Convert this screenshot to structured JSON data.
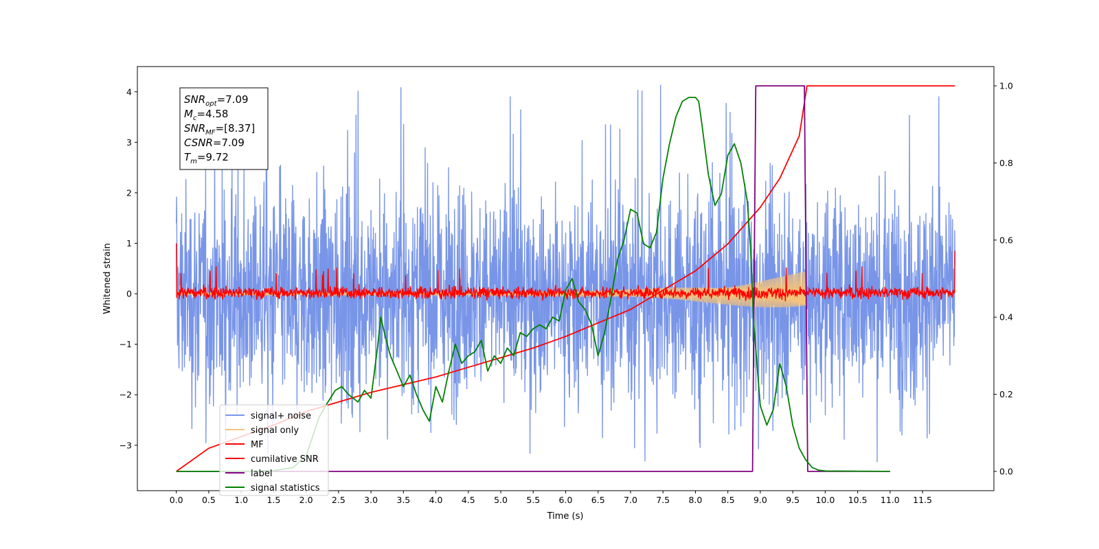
{
  "chart_data": {
    "type": "line",
    "title": "",
    "xlabel": "Time (s)",
    "ylabel": "Whitened strain",
    "y2label": "",
    "xlim": [
      -0.6,
      12.6
    ],
    "ylim": [
      -3.9,
      4.5
    ],
    "y2lim": [
      -0.05,
      1.05
    ],
    "x_ticks": [
      "0.0",
      "0.5",
      "1.0",
      "1.5",
      "2.0",
      "2.5",
      "3.0",
      "3.5",
      "4.0",
      "4.5",
      "5.0",
      "5.5",
      "6.0",
      "6.5",
      "7.0",
      "7.5",
      "8.0",
      "8.5",
      "9.0",
      "9.5",
      "10.0",
      "10.5",
      "11.0",
      "11.5"
    ],
    "y_ticks": [
      "−3",
      "−2",
      "−1",
      "0",
      "1",
      "2",
      "3",
      "4"
    ],
    "y2_ticks": [
      "0.0",
      "0.2",
      "0.4",
      "0.6",
      "0.8",
      "1.0"
    ],
    "grid": false,
    "legend_position": "lower-left",
    "info_box": [
      {
        "main": "SNR",
        "sub": "opt",
        "value": "=7.09"
      },
      {
        "main": "M",
        "sub": "c",
        "value": "=4.58"
      },
      {
        "main": "SNR",
        "sub": "MF",
        "value": "=[8.37]"
      },
      {
        "main": "CSNR",
        "sub": "",
        "value": "=7.09"
      },
      {
        "main": "T",
        "sub": "m",
        "value": "=9.72"
      }
    ],
    "series": [
      {
        "name": "signal+ noise",
        "color": "#7895e8",
        "axis": "left",
        "kind": "noise",
        "t_range": [
          0.0,
          12.0
        ],
        "typical_range": [
          -2.5,
          2.5
        ],
        "extreme_range": [
          -3.4,
          4.2
        ]
      },
      {
        "name": "signal only",
        "color": "#f5c37a",
        "axis": "left",
        "kind": "chirp",
        "t_range": [
          0.0,
          9.72
        ],
        "amplitude_start": 0.03,
        "amplitude_end": 0.45
      },
      {
        "name": "MF",
        "color": "#ff0000",
        "axis": "left",
        "kind": "noise",
        "t_range": [
          0.0,
          12.0
        ],
        "typical_range": [
          -0.15,
          0.2
        ],
        "extreme_range": [
          -0.2,
          0.55
        ],
        "start_value": 1.0
      },
      {
        "name": "cumilative SNR",
        "color": "#ff0000",
        "axis": "right",
        "x": [
          0.0,
          0.5,
          1.0,
          1.5,
          2.0,
          2.5,
          3.0,
          3.5,
          4.0,
          4.5,
          5.0,
          5.5,
          6.0,
          6.5,
          7.0,
          7.5,
          8.0,
          8.5,
          9.0,
          9.3,
          9.6,
          9.72,
          10.0,
          11.0,
          12.0
        ],
        "y": [
          0.0,
          0.06,
          0.09,
          0.12,
          0.155,
          0.18,
          0.205,
          0.225,
          0.245,
          0.27,
          0.295,
          0.32,
          0.35,
          0.385,
          0.42,
          0.47,
          0.52,
          0.59,
          0.685,
          0.76,
          0.87,
          1.0,
          1.0,
          1.0,
          1.0
        ]
      },
      {
        "name": "label",
        "color": "#800080",
        "axis": "right",
        "x": [
          0.0,
          8.88,
          8.93,
          9.68,
          9.73,
          11.0
        ],
        "y": [
          0.0,
          0.0,
          1.0,
          1.0,
          0.0,
          0.0
        ]
      },
      {
        "name": "signal statistics",
        "color": "#008000",
        "axis": "right",
        "x": [
          0.0,
          1.0,
          1.5,
          1.8,
          2.0,
          2.1,
          2.2,
          2.3,
          2.45,
          2.55,
          2.65,
          2.8,
          2.9,
          3.0,
          3.1,
          3.15,
          3.22,
          3.3,
          3.4,
          3.5,
          3.6,
          3.7,
          3.8,
          3.9,
          4.0,
          4.1,
          4.2,
          4.3,
          4.4,
          4.5,
          4.6,
          4.7,
          4.8,
          4.9,
          5.0,
          5.1,
          5.2,
          5.3,
          5.4,
          5.5,
          5.6,
          5.7,
          5.8,
          5.9,
          6.0,
          6.1,
          6.2,
          6.3,
          6.4,
          6.5,
          6.6,
          6.7,
          6.8,
          6.9,
          7.0,
          7.1,
          7.2,
          7.3,
          7.4,
          7.5,
          7.6,
          7.7,
          7.8,
          7.9,
          8.0,
          8.05,
          8.1,
          8.2,
          8.3,
          8.4,
          8.5,
          8.6,
          8.7,
          8.8,
          8.85,
          8.9,
          9.0,
          9.1,
          9.2,
          9.3,
          9.4,
          9.5,
          9.6,
          9.7,
          9.8,
          9.9,
          10.0,
          11.0
        ],
        "y": [
          0.0,
          0.0,
          0.002,
          0.01,
          0.04,
          0.09,
          0.14,
          0.17,
          0.21,
          0.22,
          0.2,
          0.18,
          0.21,
          0.19,
          0.32,
          0.4,
          0.35,
          0.3,
          0.26,
          0.22,
          0.25,
          0.2,
          0.16,
          0.13,
          0.22,
          0.18,
          0.26,
          0.33,
          0.28,
          0.3,
          0.31,
          0.34,
          0.26,
          0.3,
          0.28,
          0.32,
          0.3,
          0.36,
          0.35,
          0.37,
          0.38,
          0.37,
          0.4,
          0.39,
          0.47,
          0.5,
          0.44,
          0.42,
          0.38,
          0.3,
          0.36,
          0.45,
          0.55,
          0.6,
          0.68,
          0.67,
          0.59,
          0.58,
          0.62,
          0.76,
          0.85,
          0.92,
          0.96,
          0.97,
          0.97,
          0.96,
          0.9,
          0.77,
          0.69,
          0.72,
          0.82,
          0.85,
          0.8,
          0.7,
          0.58,
          0.38,
          0.17,
          0.12,
          0.16,
          0.28,
          0.22,
          0.12,
          0.06,
          0.03,
          0.01,
          0.003,
          0.001,
          0.0
        ]
      }
    ]
  }
}
